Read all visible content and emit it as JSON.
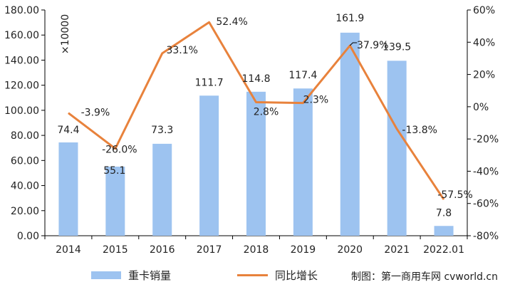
{
  "chart_data": {
    "type": "bar",
    "categories": [
      "2014",
      "2015",
      "2016",
      "2017",
      "2018",
      "2019",
      "2020",
      "2021",
      "2022.01"
    ],
    "series": [
      {
        "name": "重卡销量",
        "type": "bar",
        "axis": "left",
        "values": [
          74.4,
          55.1,
          73.3,
          111.7,
          114.8,
          117.4,
          161.9,
          139.5,
          7.8
        ],
        "labels": [
          "74.4",
          "55.1",
          "73.3",
          "111.7",
          "114.8",
          "117.4",
          "161.9",
          "139.5",
          "7.8"
        ]
      },
      {
        "name": "同比增长",
        "type": "line",
        "axis": "right",
        "values": [
          -3.9,
          -26.0,
          33.1,
          52.4,
          2.8,
          2.3,
          37.9,
          -13.8,
          -57.5
        ],
        "labels": [
          "-3.9%",
          "-26.0%",
          "33.1%",
          "52.4%",
          "2.8%",
          "2.3%",
          "37.9%",
          "-13.8%",
          "-57.5%"
        ]
      }
    ],
    "y_left": {
      "ylim": [
        0,
        180
      ],
      "ticks": [
        "0.00",
        "20.00",
        "40.00",
        "60.00",
        "80.00",
        "100.00",
        "120.00",
        "140.00",
        "160.00",
        "180.00"
      ],
      "unit": "×10000"
    },
    "y_right": {
      "ylim": [
        -80,
        60
      ],
      "ticks": [
        "-80%",
        "-60%",
        "-40%",
        "-20%",
        "0%",
        "20%",
        "40%",
        "60%"
      ]
    },
    "grid": false,
    "legend_position": "bottom",
    "colors": {
      "bar": "#9dc3f0",
      "line": "#e8823c",
      "axis": "#000000"
    }
  },
  "credit": "制图：第一商用车网  cvworld.cn"
}
